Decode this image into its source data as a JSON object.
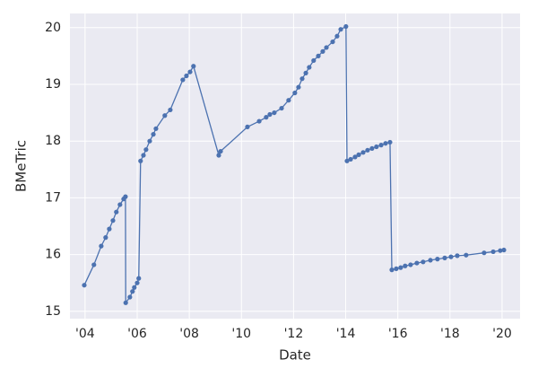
{
  "chart_data": {
    "type": "line",
    "x_label": "Date",
    "y_label": "BMeTric",
    "color": "#4c72b0",
    "grid": true,
    "xlim": [
      2003.42,
      2020.69
    ],
    "ylim": [
      14.87,
      20.25
    ],
    "xticks": [
      {
        "value": 2004,
        "label": "'04"
      },
      {
        "value": 2006,
        "label": "'06"
      },
      {
        "value": 2008,
        "label": "'08"
      },
      {
        "value": 2010,
        "label": "'10"
      },
      {
        "value": 2012,
        "label": "'12"
      },
      {
        "value": 2014,
        "label": "'14"
      },
      {
        "value": 2016,
        "label": "'16"
      },
      {
        "value": 2018,
        "label": "'18"
      },
      {
        "value": 2020,
        "label": "'20"
      }
    ],
    "yticks": [
      15,
      16,
      17,
      18,
      19,
      20
    ],
    "series": [
      {
        "name": "BMeTric",
        "color": "#4c72b0",
        "x": [
          2003.97,
          2004.34,
          2004.62,
          2004.79,
          2004.93,
          2005.07,
          2005.2,
          2005.34,
          2005.48,
          2005.55,
          2005.56,
          2005.72,
          2005.82,
          2005.89,
          2006.0,
          2006.06,
          2006.13,
          2006.24,
          2006.34,
          2006.48,
          2006.62,
          2006.72,
          2007.06,
          2007.27,
          2007.75,
          2007.89,
          2008.03,
          2008.16,
          2009.13,
          2009.2,
          2010.23,
          2010.68,
          2010.95,
          2011.09,
          2011.26,
          2011.54,
          2011.81,
          2012.05,
          2012.19,
          2012.33,
          2012.47,
          2012.6,
          2012.77,
          2012.95,
          2013.12,
          2013.26,
          2013.5,
          2013.67,
          2013.81,
          2014.01,
          2014.05,
          2014.19,
          2014.36,
          2014.5,
          2014.67,
          2014.84,
          2015.01,
          2015.18,
          2015.36,
          2015.53,
          2015.7,
          2015.77,
          2015.94,
          2016.11,
          2016.28,
          2016.49,
          2016.73,
          2016.97,
          2017.25,
          2017.52,
          2017.8,
          2018.04,
          2018.28,
          2018.62,
          2019.31,
          2019.66,
          2019.93,
          2020.07
        ],
        "values": [
          15.46,
          15.82,
          16.15,
          16.3,
          16.45,
          16.6,
          16.75,
          16.88,
          16.98,
          17.02,
          15.15,
          15.25,
          15.35,
          15.42,
          15.5,
          15.58,
          17.65,
          17.75,
          17.85,
          18.0,
          18.12,
          18.22,
          18.45,
          18.55,
          19.08,
          19.15,
          19.22,
          19.32,
          17.75,
          17.82,
          18.25,
          18.35,
          18.42,
          18.47,
          18.5,
          18.58,
          18.72,
          18.85,
          18.95,
          19.1,
          19.2,
          19.3,
          19.42,
          19.5,
          19.58,
          19.65,
          19.75,
          19.85,
          19.97,
          20.02,
          17.65,
          17.68,
          17.72,
          17.76,
          17.8,
          17.84,
          17.87,
          17.9,
          17.93,
          17.96,
          17.98,
          15.73,
          15.75,
          15.77,
          15.8,
          15.82,
          15.85,
          15.87,
          15.9,
          15.92,
          15.94,
          15.96,
          15.98,
          15.99,
          16.03,
          16.05,
          16.07,
          16.08
        ]
      }
    ]
  }
}
